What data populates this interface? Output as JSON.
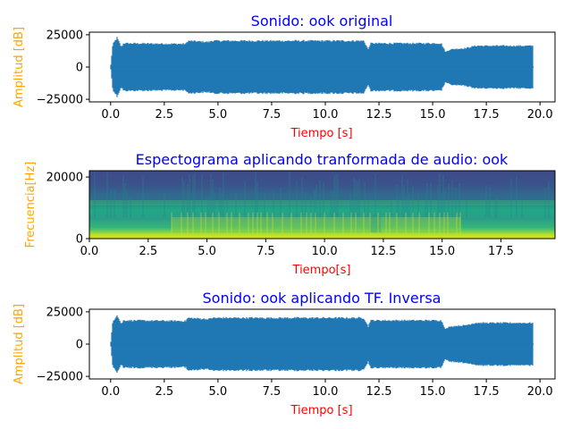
{
  "colors": {
    "title": "#0000ff",
    "xlabel": "#ff0000",
    "ylabel": "#ffa500",
    "wave": "#1f77b4"
  },
  "chart_data": [
    {
      "type": "line",
      "title": "Sonido: ook original",
      "xlabel": "Tiempo [s]",
      "ylabel": "Amplitud [dB]",
      "xlim": [
        -0.99,
        20.7
      ],
      "ylim": [
        -27000,
        27000
      ],
      "xticks": [
        0.0,
        2.5,
        5.0,
        7.5,
        10.0,
        12.5,
        15.0,
        17.5,
        20.0
      ],
      "xtick_labels": [
        "0.0",
        "2.5",
        "5.0",
        "7.5",
        "10.0",
        "12.5",
        "15.0",
        "17.5",
        "20.0"
      ],
      "yticks": [
        -25000,
        0,
        25000
      ],
      "ytick_labels": [
        "−25000",
        "0",
        "25000"
      ],
      "envelope": {
        "x": [
          0.0,
          0.1,
          0.3,
          0.5,
          0.6,
          3.5,
          3.6,
          4.6,
          4.7,
          11.8,
          12.0,
          12.1,
          12.5,
          15.4,
          15.6,
          15.8,
          16.0,
          16.5,
          17.0,
          19.7
        ],
        "amplitude": [
          200,
          18000,
          23500,
          16000,
          19000,
          18500,
          21000,
          20000,
          21000,
          21000,
          14000,
          19000,
          19000,
          19000,
          12000,
          14000,
          14500,
          15000,
          17000,
          17000
        ]
      }
    },
    {
      "type": "heatmap",
      "title": "Espectograma aplicando tranformada de audio: ook",
      "xlabel": "Tiempo[s]",
      "ylabel": "Frecuencia[Hz]",
      "xlim": [
        0,
        19.8
      ],
      "ylim": [
        0,
        22050
      ],
      "xticks": [
        0.0,
        2.5,
        5.0,
        7.5,
        10.0,
        12.5,
        15.0,
        17.5
      ],
      "xtick_labels": [
        "0.0",
        "2.5",
        "5.0",
        "7.5",
        "10.0",
        "12.5",
        "15.0",
        "17.5"
      ],
      "yticks": [
        0,
        20000
      ],
      "ytick_labels": [
        "0",
        "20000"
      ],
      "colormap": "viridis"
    },
    {
      "type": "line",
      "title": "Sonido: ook aplicando TF. Inversa",
      "xlabel": "Tiempo [s]",
      "ylabel": "Amplitud [dB]",
      "xlim": [
        -0.99,
        20.7
      ],
      "ylim": [
        -27000,
        27000
      ],
      "xticks": [
        0.0,
        2.5,
        5.0,
        7.5,
        10.0,
        12.5,
        15.0,
        17.5,
        20.0
      ],
      "xtick_labels": [
        "0.0",
        "2.5",
        "5.0",
        "7.5",
        "10.0",
        "12.5",
        "15.0",
        "17.5",
        "20.0"
      ],
      "yticks": [
        -25000,
        0,
        25000
      ],
      "ytick_labels": [
        "−25000",
        "0",
        "25000"
      ],
      "envelope": {
        "x": [
          0.0,
          0.1,
          0.3,
          0.5,
          0.6,
          3.5,
          3.6,
          4.6,
          4.7,
          11.8,
          12.0,
          12.1,
          12.5,
          15.4,
          15.6,
          15.8,
          16.0,
          16.5,
          17.0,
          19.7
        ],
        "amplitude": [
          200,
          18000,
          23500,
          16000,
          19000,
          18500,
          21000,
          20000,
          21000,
          21000,
          14000,
          19000,
          19000,
          19000,
          12000,
          14000,
          14500,
          15000,
          17000,
          17000
        ]
      }
    }
  ]
}
